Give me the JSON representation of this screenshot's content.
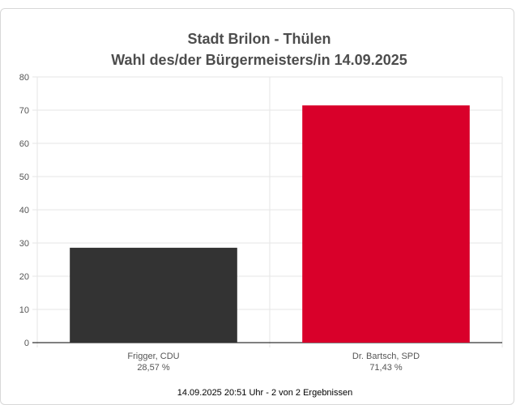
{
  "chart_data": {
    "type": "bar",
    "title_line1": "Stadt Brilon - Thülen",
    "title_line2": "Wahl des/der Bürgermeisters/in 14.09.2025",
    "categories": [
      "Frigger, CDU",
      "Dr. Bartsch, SPD"
    ],
    "value_labels": [
      "28,57 %",
      "71,43 %"
    ],
    "values": [
      28.57,
      71.43
    ],
    "colors": [
      "#333333",
      "#d9002a"
    ],
    "ylim": [
      0,
      80
    ],
    "yticks": [
      0,
      10,
      20,
      30,
      40,
      50,
      60,
      70,
      80
    ],
    "grid": true,
    "legend": "none"
  },
  "footer": "14.09.2025 20:51 Uhr - 2 von 2 Ergebnissen"
}
